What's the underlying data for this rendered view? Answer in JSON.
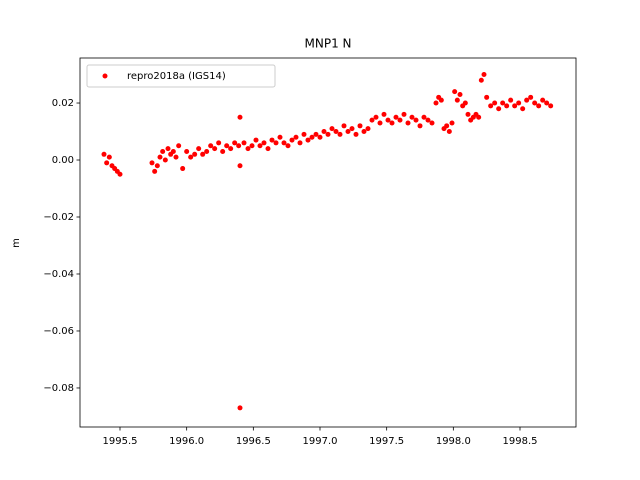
{
  "chart_data": {
    "type": "scatter",
    "title": "MNP1 N",
    "y_label": "m",
    "x": [
      1995.38,
      1995.4,
      1995.42,
      1995.44,
      1995.46,
      1995.48,
      1995.5,
      1995.74,
      1995.76,
      1995.78,
      1995.8,
      1995.82,
      1995.84,
      1995.86,
      1995.88,
      1995.9,
      1995.92,
      1995.94,
      1995.97,
      1996.0,
      1996.03,
      1996.06,
      1996.09,
      1996.12,
      1996.15,
      1996.18,
      1996.21,
      1996.24,
      1996.27,
      1996.3,
      1996.33,
      1996.36,
      1996.39,
      1996.4,
      1996.4,
      1996.4,
      1996.43,
      1996.46,
      1996.49,
      1996.52,
      1996.55,
      1996.58,
      1996.61,
      1996.64,
      1996.67,
      1996.7,
      1996.73,
      1996.76,
      1996.79,
      1996.82,
      1996.85,
      1996.88,
      1996.91,
      1996.94,
      1996.97,
      1997.0,
      1997.03,
      1997.06,
      1997.09,
      1997.12,
      1997.15,
      1997.18,
      1997.21,
      1997.24,
      1997.27,
      1997.3,
      1997.33,
      1997.36,
      1997.39,
      1997.42,
      1997.45,
      1997.48,
      1997.51,
      1997.54,
      1997.57,
      1997.6,
      1997.63,
      1997.66,
      1997.69,
      1997.72,
      1997.75,
      1997.78,
      1997.81,
      1997.84,
      1997.87,
      1997.89,
      1997.91,
      1997.93,
      1997.95,
      1997.97,
      1997.99,
      1998.01,
      1998.03,
      1998.05,
      1998.07,
      1998.09,
      1998.11,
      1998.13,
      1998.15,
      1998.17,
      1998.19,
      1998.21,
      1998.23,
      1998.25,
      1998.28,
      1998.31,
      1998.34,
      1998.37,
      1998.4,
      1998.43,
      1998.46,
      1998.49,
      1998.52,
      1998.55,
      1998.58,
      1998.61,
      1998.64,
      1998.67,
      1998.7,
      1998.73
    ],
    "series": [
      {
        "name": "repro2018a (IGS14)",
        "color": "#ff0000",
        "values": [
          0.002,
          -0.001,
          0.001,
          -0.002,
          -0.003,
          -0.004,
          -0.005,
          -0.001,
          -0.004,
          -0.002,
          0.001,
          0.003,
          0.0,
          0.004,
          0.002,
          0.003,
          0.001,
          0.005,
          -0.003,
          0.003,
          0.001,
          0.002,
          0.004,
          0.002,
          0.003,
          0.005,
          0.004,
          0.006,
          0.003,
          0.005,
          0.004,
          0.006,
          0.005,
          -0.087,
          0.015,
          -0.002,
          0.006,
          0.004,
          0.005,
          0.007,
          0.005,
          0.006,
          0.004,
          0.007,
          0.006,
          0.008,
          0.006,
          0.005,
          0.007,
          0.008,
          0.006,
          0.009,
          0.007,
          0.008,
          0.009,
          0.008,
          0.01,
          0.009,
          0.011,
          0.01,
          0.009,
          0.012,
          0.01,
          0.011,
          0.009,
          0.012,
          0.01,
          0.011,
          0.014,
          0.015,
          0.013,
          0.016,
          0.014,
          0.013,
          0.015,
          0.014,
          0.016,
          0.013,
          0.015,
          0.014,
          0.012,
          0.015,
          0.014,
          0.013,
          0.02,
          0.022,
          0.021,
          0.011,
          0.012,
          0.01,
          0.013,
          0.024,
          0.021,
          0.023,
          0.019,
          0.02,
          0.016,
          0.014,
          0.015,
          0.016,
          0.015,
          0.028,
          0.03,
          0.022,
          0.019,
          0.02,
          0.018,
          0.02,
          0.019,
          0.021,
          0.019,
          0.02,
          0.018,
          0.021,
          0.022,
          0.02,
          0.019,
          0.021,
          0.02,
          0.019
        ]
      }
    ],
    "xlim": [
      1995.2,
      1998.92
    ],
    "xticks": [
      1995.5,
      {
        "value": 1996.0,
        "label": "1996.0"
      },
      1996.5,
      {
        "value": 1997.0,
        "label": "1997.0"
      },
      1997.5,
      {
        "value": 1998.0,
        "label": "1998.0"
      },
      1998.5
    ],
    "ylim": [
      -0.0937,
      0.0358
    ],
    "yticks": [
      {
        "value": -0.08,
        "label": "−0.08"
      },
      {
        "value": -0.06,
        "label": "−0.06"
      },
      {
        "value": -0.04,
        "label": "−0.04"
      },
      {
        "value": -0.02,
        "label": "−0.02"
      },
      {
        "value": 0.0,
        "label": "0.00"
      },
      {
        "value": 0.02,
        "label": "0.02"
      }
    ],
    "legend": "upper left"
  }
}
